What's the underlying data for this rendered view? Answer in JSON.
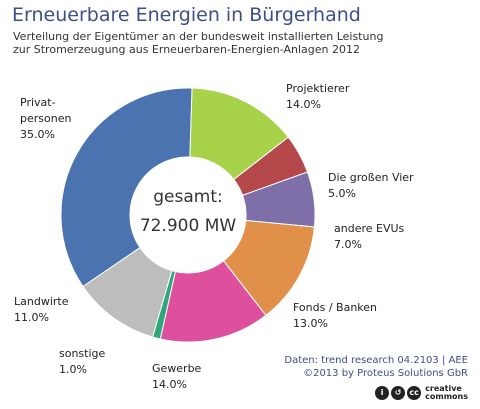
{
  "header": {
    "title": "Erneuerbare Energien in Bürgerhand",
    "subtitle_line1": "Verteilung der Eigentümer an der bundesweit installierten Leistung",
    "subtitle_line2": "zur Stromerzeugung aus Erneuerbaren-Energien-Anlagen 2012"
  },
  "center": {
    "line1": "gesamt:",
    "line2": "72.900 MW"
  },
  "chart_data": {
    "type": "pie",
    "title": "Erneuerbare Energien in Bürgerhand",
    "total_label": "gesamt: 72.900 MW",
    "unit": "%",
    "slices": [
      {
        "label": "Projektierer",
        "label_lines": [
          "Projektierer"
        ],
        "value": 14.0,
        "value_text": "14.0%",
        "color": "#a8d24a"
      },
      {
        "label": "Die großen Vier",
        "label_lines": [
          "Die großen Vier"
        ],
        "value": 5.0,
        "value_text": "5.0%",
        "color": "#b4484a"
      },
      {
        "label": "andere EVUs",
        "label_lines": [
          "andere EVUs"
        ],
        "value": 7.0,
        "value_text": "7.0%",
        "color": "#7e6fa8"
      },
      {
        "label": "Fonds / Banken",
        "label_lines": [
          "Fonds / Banken"
        ],
        "value": 13.0,
        "value_text": "13.0%",
        "color": "#e1904a"
      },
      {
        "label": "Gewerbe",
        "label_lines": [
          "Gewerbe"
        ],
        "value": 14.0,
        "value_text": "14.0%",
        "color": "#de4f9e"
      },
      {
        "label": "sonstige",
        "label_lines": [
          "sonstige"
        ],
        "value": 1.0,
        "value_text": "1.0%",
        "color": "#2fa87c"
      },
      {
        "label": "Landwirte",
        "label_lines": [
          "Landwirte"
        ],
        "value": 11.0,
        "value_text": "11.0%",
        "color": "#bdbdbd"
      },
      {
        "label": "Privatpersonen",
        "label_lines": [
          "Privat-",
          "personen"
        ],
        "value": 35.0,
        "value_text": "35.0%",
        "color": "#4a73b0"
      }
    ]
  },
  "footer": {
    "source_line1": "Daten: trend research 04.2103 | AEE",
    "source_line2": "©2013 by Proteus Solutions GbR",
    "license_word1": "creative",
    "license_word2": "commons"
  }
}
